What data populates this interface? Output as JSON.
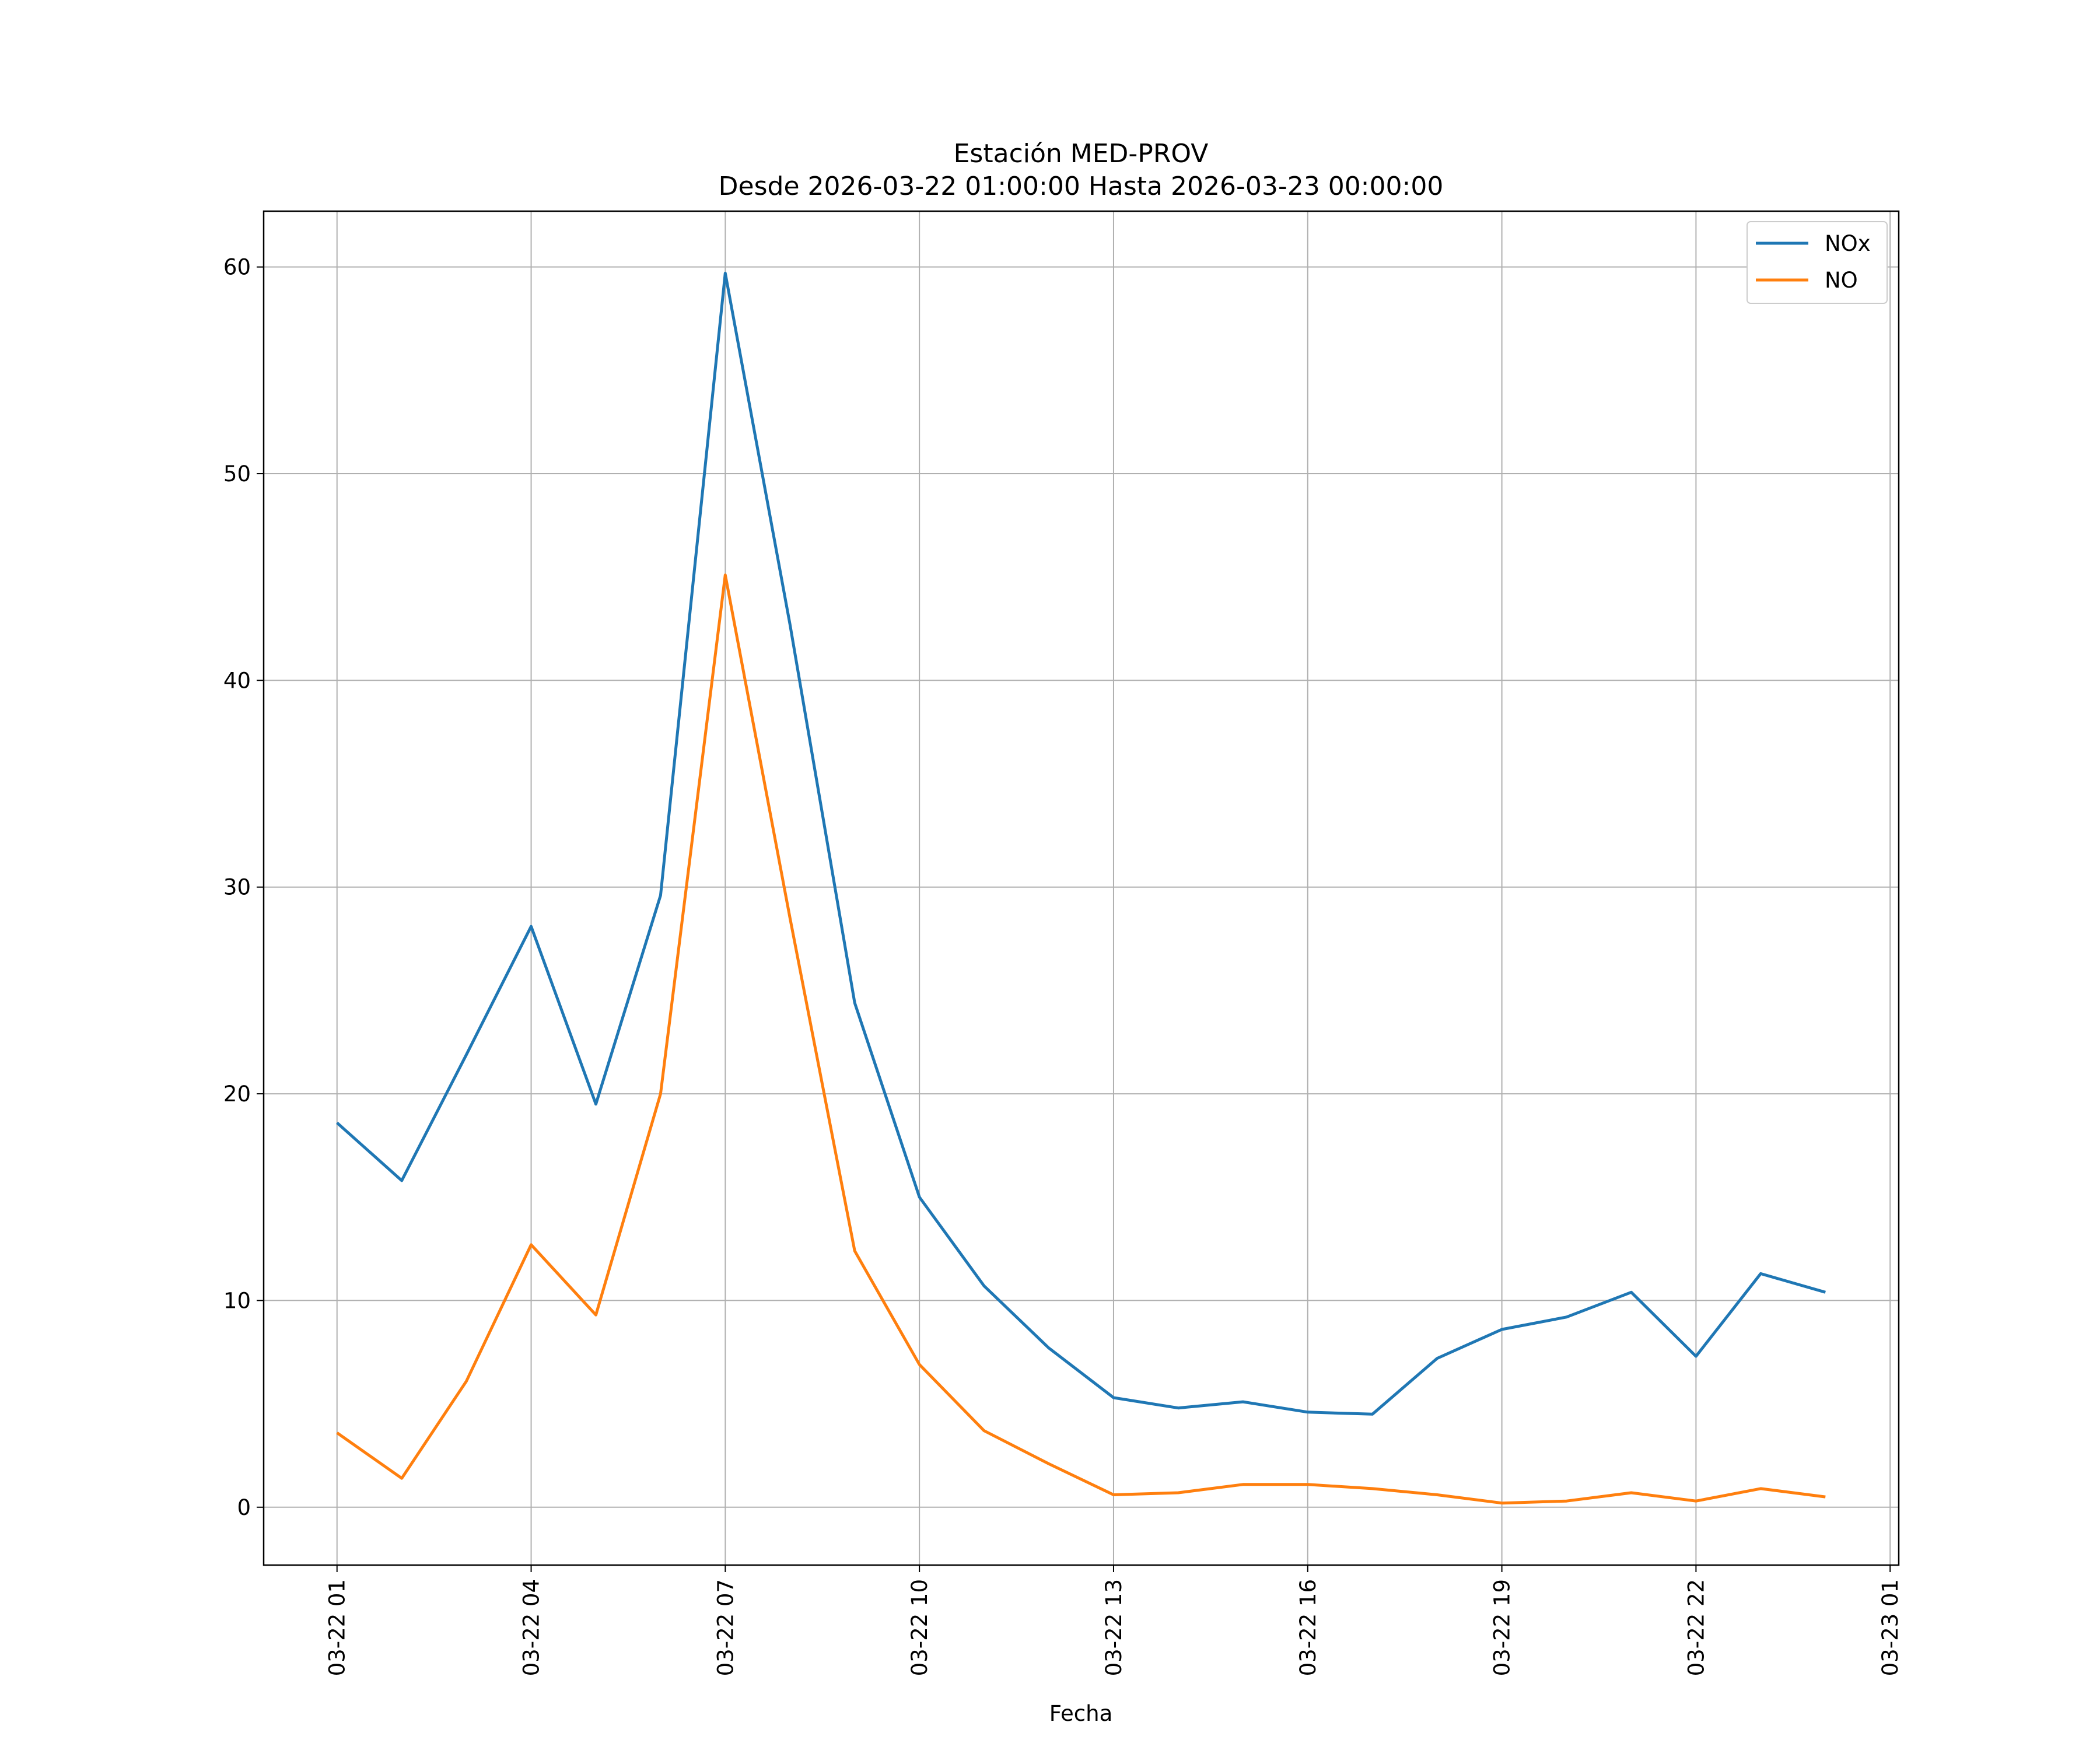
{
  "chart_data": {
    "type": "line",
    "title": "Estación MED-PROV",
    "subtitle": "Desde 2026-03-22 01:00:00 Hasta 2026-03-23 00:00:00",
    "xlabel": "Fecha",
    "ylabel": "",
    "x": [
      "2026-03-22 01:00",
      "2026-03-22 02:00",
      "2026-03-22 03:00",
      "2026-03-22 04:00",
      "2026-03-22 05:00",
      "2026-03-22 06:00",
      "2026-03-22 07:00",
      "2026-03-22 08:00",
      "2026-03-22 09:00",
      "2026-03-22 10:00",
      "2026-03-22 11:00",
      "2026-03-22 12:00",
      "2026-03-22 13:00",
      "2026-03-22 14:00",
      "2026-03-22 15:00",
      "2026-03-22 16:00",
      "2026-03-22 17:00",
      "2026-03-22 18:00",
      "2026-03-22 19:00",
      "2026-03-22 20:00",
      "2026-03-22 21:00",
      "2026-03-22 22:00",
      "2026-03-22 23:00",
      "2026-03-23 00:00"
    ],
    "xlim": [
      "2026-03-21 23:52",
      "2026-03-23 01:08"
    ],
    "xticks": [
      "2026-03-22 01:00",
      "2026-03-22 04:00",
      "2026-03-22 07:00",
      "2026-03-22 10:00",
      "2026-03-22 13:00",
      "2026-03-22 16:00",
      "2026-03-22 19:00",
      "2026-03-22 22:00",
      "2026-03-23 01:00"
    ],
    "xtick_labels": [
      "03-22 01",
      "03-22 04",
      "03-22 07",
      "03-22 10",
      "03-22 13",
      "03-22 16",
      "03-22 19",
      "03-22 22",
      "03-23 01"
    ],
    "yticks": [
      0,
      10,
      20,
      30,
      40,
      50,
      60
    ],
    "ytick_labels": [
      "0",
      "10",
      "20",
      "30",
      "40",
      "50",
      "60"
    ],
    "ylim": [
      -2.8,
      62.7
    ],
    "grid": true,
    "legend_position": "top-right",
    "series": [
      {
        "name": "NOx",
        "color": "#1f77b4",
        "values": [
          18.6,
          15.8,
          21.9,
          28.1,
          19.5,
          29.6,
          59.7,
          42.7,
          24.4,
          15.0,
          10.7,
          7.7,
          5.3,
          4.8,
          5.1,
          4.6,
          4.5,
          7.2,
          8.6,
          9.2,
          10.4,
          7.3,
          11.3,
          10.4
        ]
      },
      {
        "name": "NO",
        "color": "#ff7f0e",
        "values": [
          3.6,
          1.4,
          6.1,
          12.7,
          9.3,
          20.0,
          45.1,
          28.5,
          12.4,
          6.9,
          3.7,
          2.1,
          0.6,
          0.7,
          1.1,
          1.1,
          0.9,
          0.6,
          0.2,
          0.3,
          0.7,
          0.3,
          0.9,
          0.5
        ]
      }
    ]
  }
}
